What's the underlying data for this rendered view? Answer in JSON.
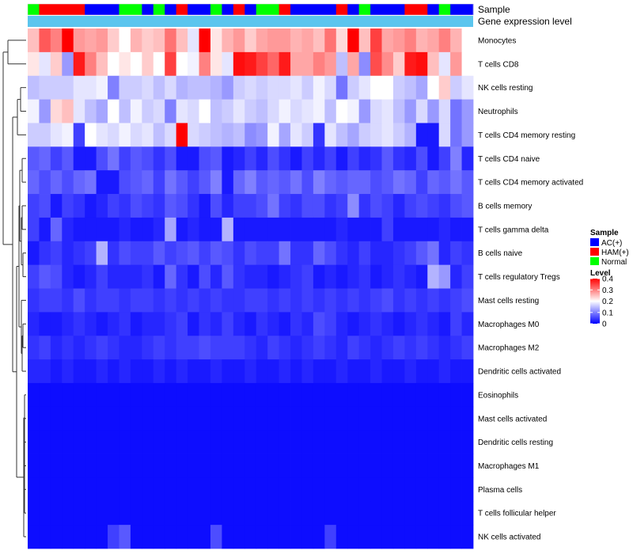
{
  "chart_data": {
    "type": "heatmap",
    "annotation_labels": [
      "Sample",
      "Gene expression level"
    ],
    "row_labels": [
      "Monocytes",
      "T cells CD8",
      "NK cells resting",
      "Neutrophils",
      "T cells CD4 memory resting",
      "T cells CD4 naive",
      "T cells CD4 memory activated",
      "B cells memory",
      "T cells gamma delta",
      "B cells naive",
      "T cells regulatory  Tregs",
      "Mast cells resting",
      "Macrophages M0",
      "Macrophages M2",
      "Dendritic cells activated",
      "Eosinophils",
      "Mast cells activated",
      "Dendritic cells resting",
      "Macrophages M1",
      "Plasma cells",
      "T cells follicular helper",
      "NK cells activated"
    ],
    "sample_groups": [
      "N",
      "H",
      "H",
      "H",
      "H",
      "A",
      "A",
      "A",
      "N",
      "N",
      "A",
      "N",
      "A",
      "H",
      "A",
      "A",
      "N",
      "A",
      "H",
      "A",
      "N",
      "N",
      "H",
      "A",
      "A",
      "A",
      "A",
      "H",
      "A",
      "N",
      "A",
      "A",
      "A",
      "H",
      "H",
      "A",
      "N",
      "A",
      "A"
    ],
    "gene_expression_level_color": "#5BC5EE",
    "legend": {
      "sample": {
        "title": "Sample",
        "items": [
          {
            "label": "AC(+)",
            "color": "#0000FF",
            "key": "A"
          },
          {
            "label": "HAM(+)",
            "color": "#FF0000",
            "key": "H"
          },
          {
            "label": "Normal",
            "color": "#00FF00",
            "key": "N"
          }
        ]
      },
      "level": {
        "title": "Level",
        "ticks": [
          "0.4",
          "0.3",
          "0.2",
          "0.1",
          "0"
        ],
        "tick_values": [
          0.4,
          0.3,
          0.2,
          0.1,
          0
        ],
        "range": [
          0,
          0.4
        ],
        "colors": [
          "#0000FF",
          "#FFFFFF",
          "#FF0000"
        ]
      }
    },
    "values": [
      [
        0.25,
        0.33,
        0.3,
        0.4,
        0.28,
        0.27,
        0.28,
        0.24,
        0.2,
        0.26,
        0.24,
        0.25,
        0.31,
        0.25,
        0.18,
        0.4,
        0.22,
        0.26,
        0.28,
        0.24,
        0.27,
        0.28,
        0.28,
        0.26,
        0.27,
        0.25,
        0.31,
        0.23,
        0.4,
        0.25,
        0.35,
        0.27,
        0.28,
        0.3,
        0.26,
        0.27,
        0.3,
        0.26,
        0.2
      ],
      [
        0.22,
        0.18,
        0.24,
        0.12,
        0.38,
        0.3,
        0.25,
        0.2,
        0.22,
        0.2,
        0.24,
        0.2,
        0.35,
        0.2,
        0.19,
        0.3,
        0.22,
        0.18,
        0.39,
        0.38,
        0.35,
        0.32,
        0.38,
        0.27,
        0.27,
        0.3,
        0.28,
        0.15,
        0.27,
        0.11,
        0.34,
        0.29,
        0.24,
        0.38,
        0.39,
        0.25,
        0.18,
        0.28,
        0.2
      ],
      [
        0.15,
        0.16,
        0.16,
        0.16,
        0.18,
        0.18,
        0.19,
        0.1,
        0.16,
        0.16,
        0.17,
        0.15,
        0.17,
        0.14,
        0.15,
        0.15,
        0.14,
        0.12,
        0.16,
        0.17,
        0.16,
        0.17,
        0.17,
        0.18,
        0.16,
        0.19,
        0.17,
        0.09,
        0.16,
        0.18,
        0.2,
        0.2,
        0.16,
        0.15,
        0.13,
        0.2,
        0.24,
        0.16,
        0.18
      ],
      [
        0.19,
        0.12,
        0.23,
        0.25,
        0.18,
        0.15,
        0.13,
        0.2,
        0.15,
        0.19,
        0.16,
        0.17,
        0.1,
        0.18,
        0.17,
        0.2,
        0.15,
        0.16,
        0.18,
        0.16,
        0.15,
        0.17,
        0.19,
        0.17,
        0.18,
        0.19,
        0.15,
        0.2,
        0.19,
        0.12,
        0.17,
        0.18,
        0.15,
        0.12,
        0.17,
        0.12,
        0.17,
        0.09,
        0.12
      ],
      [
        0.16,
        0.16,
        0.18,
        0.19,
        0.05,
        0.2,
        0.18,
        0.17,
        0.19,
        0.17,
        0.18,
        0.15,
        0.17,
        0.4,
        0.17,
        0.16,
        0.15,
        0.14,
        0.15,
        0.11,
        0.12,
        0.19,
        0.13,
        0.18,
        0.16,
        0.04,
        0.18,
        0.15,
        0.13,
        0.16,
        0.17,
        0.18,
        0.16,
        0.14,
        0.02,
        0.02,
        0.17,
        0.09,
        0.12
      ],
      [
        0.07,
        0.08,
        0.05,
        0.07,
        0.02,
        0.02,
        0.06,
        0.09,
        0.05,
        0.07,
        0.06,
        0.04,
        0.06,
        0.02,
        0.02,
        0.06,
        0.07,
        0.02,
        0.03,
        0.05,
        0.03,
        0.06,
        0.04,
        0.02,
        0.05,
        0.03,
        0.05,
        0.02,
        0.05,
        0.03,
        0.04,
        0.07,
        0.04,
        0.03,
        0.06,
        0.02,
        0.05,
        0.1,
        0.03
      ],
      [
        0.08,
        0.06,
        0.08,
        0.06,
        0.08,
        0.09,
        0.02,
        0.02,
        0.06,
        0.07,
        0.08,
        0.05,
        0.09,
        0.07,
        0.05,
        0.07,
        0.1,
        0.02,
        0.08,
        0.1,
        0.07,
        0.08,
        0.07,
        0.09,
        0.06,
        0.1,
        0.08,
        0.07,
        0.08,
        0.08,
        0.06,
        0.07,
        0.09,
        0.08,
        0.05,
        0.08,
        0.07,
        0.09,
        0.07
      ],
      [
        0.05,
        0.06,
        0.02,
        0.05,
        0.04,
        0.02,
        0.03,
        0.05,
        0.04,
        0.06,
        0.05,
        0.04,
        0.07,
        0.06,
        0.04,
        0.02,
        0.06,
        0.03,
        0.05,
        0.05,
        0.06,
        0.09,
        0.05,
        0.04,
        0.06,
        0.06,
        0.04,
        0.05,
        0.11,
        0.04,
        0.06,
        0.05,
        0.03,
        0.05,
        0.06,
        0.05,
        0.04,
        0.06,
        0.07
      ],
      [
        0.05,
        0.02,
        0.08,
        0.03,
        0.02,
        0.02,
        0.02,
        0.02,
        0.03,
        0.02,
        0.02,
        0.03,
        0.13,
        0.02,
        0.03,
        0.02,
        0.02,
        0.14,
        0.02,
        0.02,
        0.02,
        0.02,
        0.02,
        0.02,
        0.02,
        0.02,
        0.02,
        0.03,
        0.02,
        0.02,
        0.02,
        0.05,
        0.02,
        0.02,
        0.02,
        0.02,
        0.03,
        0.02,
        0.02
      ],
      [
        0.02,
        0.04,
        0.05,
        0.03,
        0.04,
        0.05,
        0.14,
        0.04,
        0.06,
        0.05,
        0.05,
        0.07,
        0.05,
        0.06,
        0.07,
        0.05,
        0.07,
        0.06,
        0.04,
        0.06,
        0.05,
        0.05,
        0.09,
        0.04,
        0.04,
        0.08,
        0.06,
        0.04,
        0.03,
        0.05,
        0.03,
        0.03,
        0.04,
        0.05,
        0.07,
        0.09,
        0.03,
        0.05,
        0.04
      ],
      [
        0.05,
        0.07,
        0.06,
        0.03,
        0.02,
        0.03,
        0.05,
        0.03,
        0.03,
        0.03,
        0.04,
        0.02,
        0.08,
        0.04,
        0.02,
        0.06,
        0.03,
        0.07,
        0.04,
        0.03,
        0.03,
        0.02,
        0.03,
        0.04,
        0.05,
        0.02,
        0.03,
        0.02,
        0.03,
        0.04,
        0.02,
        0.03,
        0.04,
        0.03,
        0.02,
        0.14,
        0.12,
        0.03,
        0.05
      ],
      [
        0.04,
        0.05,
        0.05,
        0.04,
        0.06,
        0.04,
        0.05,
        0.05,
        0.04,
        0.05,
        0.05,
        0.04,
        0.05,
        0.04,
        0.05,
        0.04,
        0.05,
        0.04,
        0.04,
        0.05,
        0.05,
        0.04,
        0.05,
        0.04,
        0.05,
        0.04,
        0.05,
        0.04,
        0.05,
        0.04,
        0.05,
        0.06,
        0.04,
        0.05,
        0.04,
        0.05,
        0.04,
        0.05,
        0.06
      ],
      [
        0.03,
        0.02,
        0.02,
        0.03,
        0.04,
        0.03,
        0.02,
        0.03,
        0.04,
        0.02,
        0.03,
        0.03,
        0.04,
        0.05,
        0.02,
        0.04,
        0.03,
        0.05,
        0.03,
        0.02,
        0.04,
        0.03,
        0.02,
        0.04,
        0.03,
        0.06,
        0.05,
        0.03,
        0.02,
        0.03,
        0.04,
        0.03,
        0.02,
        0.03,
        0.04,
        0.03,
        0.02,
        0.05,
        0.03
      ],
      [
        0.04,
        0.05,
        0.03,
        0.04,
        0.03,
        0.04,
        0.05,
        0.04,
        0.03,
        0.03,
        0.04,
        0.05,
        0.04,
        0.05,
        0.05,
        0.06,
        0.05,
        0.05,
        0.05,
        0.04,
        0.03,
        0.05,
        0.04,
        0.03,
        0.04,
        0.05,
        0.04,
        0.03,
        0.05,
        0.04,
        0.03,
        0.04,
        0.05,
        0.04,
        0.05,
        0.04,
        0.03,
        0.04,
        0.05
      ],
      [
        0.03,
        0.03,
        0.02,
        0.03,
        0.02,
        0.02,
        0.03,
        0.02,
        0.03,
        0.02,
        0.02,
        0.03,
        0.02,
        0.03,
        0.02,
        0.02,
        0.03,
        0.02,
        0.02,
        0.03,
        0.02,
        0.02,
        0.03,
        0.02,
        0.03,
        0.02,
        0.02,
        0.03,
        0.02,
        0.02,
        0.03,
        0.02,
        0.02,
        0.03,
        0.02,
        0.02,
        0.03,
        0.02,
        0.02
      ],
      [
        0.01,
        0.01,
        0.01,
        0.01,
        0.01,
        0.01,
        0.01,
        0.01,
        0.01,
        0.01,
        0.01,
        0.01,
        0.01,
        0.01,
        0.01,
        0.01,
        0.01,
        0.01,
        0.01,
        0.01,
        0.01,
        0.01,
        0.01,
        0.01,
        0.01,
        0.01,
        0.01,
        0.01,
        0.01,
        0.01,
        0.01,
        0.01,
        0.01,
        0.01,
        0.01,
        0.01,
        0.01,
        0.01,
        0.01
      ],
      [
        0.01,
        0.01,
        0.01,
        0.01,
        0.01,
        0.01,
        0.01,
        0.01,
        0.01,
        0.01,
        0.01,
        0.01,
        0.01,
        0.01,
        0.01,
        0.01,
        0.01,
        0.01,
        0.01,
        0.01,
        0.01,
        0.01,
        0.01,
        0.01,
        0.01,
        0.01,
        0.01,
        0.01,
        0.01,
        0.01,
        0.01,
        0.01,
        0.01,
        0.01,
        0.01,
        0.01,
        0.01,
        0.01,
        0.01
      ],
      [
        0.01,
        0.01,
        0.01,
        0.01,
        0.01,
        0.01,
        0.01,
        0.01,
        0.01,
        0.01,
        0.01,
        0.01,
        0.01,
        0.01,
        0.01,
        0.01,
        0.01,
        0.01,
        0.01,
        0.01,
        0.01,
        0.01,
        0.01,
        0.01,
        0.01,
        0.01,
        0.01,
        0.01,
        0.01,
        0.01,
        0.01,
        0.01,
        0.01,
        0.01,
        0.01,
        0.01,
        0.01,
        0.01,
        0.01
      ],
      [
        0.01,
        0.01,
        0.01,
        0.01,
        0.01,
        0.01,
        0.01,
        0.01,
        0.01,
        0.01,
        0.01,
        0.01,
        0.01,
        0.01,
        0.01,
        0.01,
        0.01,
        0.01,
        0.01,
        0.01,
        0.01,
        0.01,
        0.01,
        0.01,
        0.01,
        0.01,
        0.01,
        0.01,
        0.01,
        0.01,
        0.01,
        0.01,
        0.01,
        0.01,
        0.01,
        0.01,
        0.01,
        0.01,
        0.01
      ],
      [
        0.01,
        0.01,
        0.01,
        0.01,
        0.01,
        0.01,
        0.01,
        0.01,
        0.01,
        0.01,
        0.01,
        0.01,
        0.01,
        0.01,
        0.01,
        0.01,
        0.01,
        0.01,
        0.01,
        0.01,
        0.01,
        0.01,
        0.01,
        0.01,
        0.01,
        0.01,
        0.01,
        0.01,
        0.01,
        0.01,
        0.01,
        0.01,
        0.01,
        0.01,
        0.01,
        0.01,
        0.01,
        0.01,
        0.01
      ],
      [
        0.01,
        0.01,
        0.01,
        0.01,
        0.01,
        0.01,
        0.01,
        0.01,
        0.01,
        0.01,
        0.01,
        0.01,
        0.01,
        0.01,
        0.01,
        0.01,
        0.01,
        0.01,
        0.01,
        0.01,
        0.01,
        0.01,
        0.01,
        0.01,
        0.01,
        0.01,
        0.01,
        0.01,
        0.01,
        0.01,
        0.01,
        0.01,
        0.01,
        0.01,
        0.01,
        0.01,
        0.01,
        0.01,
        0.01
      ],
      [
        0.01,
        0.01,
        0.01,
        0.01,
        0.01,
        0.01,
        0.01,
        0.05,
        0.07,
        0.01,
        0.01,
        0.01,
        0.01,
        0.01,
        0.01,
        0.01,
        0.06,
        0.01,
        0.01,
        0.01,
        0.01,
        0.01,
        0.01,
        0.01,
        0.01,
        0.01,
        0.05,
        0.01,
        0.01,
        0.01,
        0.01,
        0.01,
        0.01,
        0.01,
        0.01,
        0.01,
        0.01,
        0.01,
        0.01
      ]
    ]
  }
}
